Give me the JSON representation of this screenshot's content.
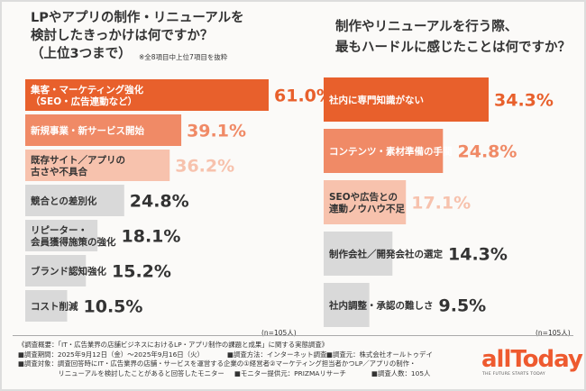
{
  "left": {
    "title_lines": [
      "LPやアプリの制作・リニューアルを",
      "検討したきっかけは何ですか？",
      "（上位3つまで）"
    ],
    "note": "※全8項目中上位7項目を抜粋",
    "n": "(n=105人)"
  },
  "right": {
    "title_lines": [
      "制作やリニューアルを行う際、",
      "最もハードルに感じたことは何ですか？"
    ],
    "n": "(n=105人)"
  },
  "chart_data": [
    {
      "type": "bar",
      "orientation": "horizontal",
      "categories": [
        [
          "集客・マーケティング強化",
          "（SEO・広告連動など）"
        ],
        [
          "新規事業・新サービス開始"
        ],
        [
          "既存サイト／アプリの",
          "古さや不具合"
        ],
        [
          "競合との差別化"
        ],
        [
          "リピーター・",
          "会員獲得施策の強化"
        ],
        [
          "ブランド認知強化"
        ],
        [
          "コスト削減"
        ]
      ],
      "values": [
        61.0,
        39.1,
        36.2,
        24.8,
        18.1,
        15.2,
        10.5
      ],
      "value_labels": [
        "61.0%",
        "39.1%",
        "36.2%",
        "24.8%",
        "18.1%",
        "15.2%",
        "10.5%"
      ],
      "colors": [
        "#e8602c",
        "#f08a66",
        "#f7c2ad",
        "#d9d9d9",
        "#d9d9d9",
        "#d9d9d9",
        "#d9d9d9"
      ],
      "label_colors": [
        "#e8602c",
        "#f08a66",
        "#f7c2ad",
        "#333333",
        "#333333",
        "#333333",
        "#333333"
      ]
    },
    {
      "type": "bar",
      "orientation": "horizontal",
      "categories": [
        [
          "社内に専門知識がない"
        ],
        [
          "コンテンツ・素材準備の手間"
        ],
        [
          "SEOや広告との",
          "連動ノウハウ不足"
        ],
        [
          "制作会社／開発会社の選定"
        ],
        [
          "社内調整・承認の難しさ"
        ]
      ],
      "values": [
        34.3,
        24.8,
        17.1,
        14.3,
        9.5
      ],
      "value_labels": [
        "34.3%",
        "24.8%",
        "17.1%",
        "14.3%",
        "9.5%"
      ],
      "colors": [
        "#e8602c",
        "#f08a66",
        "#f7c2ad",
        "#d9d9d9",
        "#d9d9d9"
      ],
      "label_colors": [
        "#e8602c",
        "#f08a66",
        "#f7c2ad",
        "#333333",
        "#333333"
      ]
    }
  ],
  "survey": {
    "line1": "《調査概要：「IT・広告業界の店舗ビジネスにおけるLP・アプリ制作の課題と成果」に関する実態調査》",
    "period": "■調査期間：2025年9月12日（金）〜2025年9月16日（火）",
    "method": "■調査方法：インターネット調査",
    "org": "■調査元：株式会社オールトゥデイ",
    "target1": "■調査対象：調査回答時にIT・広告業界の店舗・サービスを運営する企業の①経営者②マーケティング担当者かつLP／アプリの制作・",
    "target2": "　　　　　　リニューアルを検討したことがあると回答したモニター",
    "monitor": "■モニター提供元：PRIZMAリサーチ",
    "count": "■調査人数：105人"
  },
  "brand": {
    "name": "allToday",
    "tagline": "THE FUTURE STARTS TODAY"
  }
}
